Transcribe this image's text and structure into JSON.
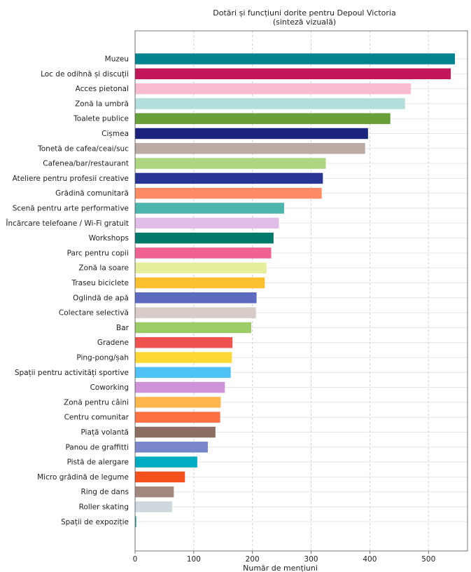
{
  "chart_data": {
    "type": "bar",
    "orientation": "horizontal",
    "title": "Dotări și funcțiuni dorite pentru Depoul Victoria",
    "subtitle": "(sinteză vizuală)",
    "xlabel": "Număr de mențiuni",
    "ylabel": "",
    "xlim": [
      0,
      565
    ],
    "xticks": [
      0,
      100,
      200,
      300,
      400,
      500
    ],
    "grid": "x-dashed",
    "legend": "none",
    "categories": [
      "Muzeu",
      "Loc de odihnă și discuții",
      "Acces pietonal",
      "Zonă la umbră",
      "Toalete publice",
      "Cișmea",
      "Tonetă de cafea/ceai/suc",
      "Cafenea/bar/restaurant",
      "Ateliere pentru profesii creative",
      "Grădină comunitară",
      "Scenă pentru arte performative",
      "Încărcare telefoane / Wi-Fi gratuit",
      "Workshops",
      "Parc pentru copii",
      "Zonă la soare",
      "Traseu biciclete",
      "Oglindă de apă",
      "Colectare selectivă",
      "Bar",
      "Gradene",
      "Ping-pong/șah",
      "Spații pentru activități sportive",
      "Coworking",
      "Zonă pentru câini",
      "Centru comunitar",
      "Piață volantă",
      "Panou de graffitti",
      "Pistă de alergare",
      "Micro grădină de legume",
      "Ring de dans",
      "Roller skating",
      "Spații de expoziție"
    ],
    "values": [
      545,
      538,
      470,
      460,
      435,
      397,
      392,
      325,
      320,
      318,
      254,
      245,
      236,
      232,
      224,
      221,
      207,
      206,
      198,
      166,
      165,
      163,
      153,
      146,
      145,
      137,
      124,
      106,
      85,
      66,
      63,
      2
    ],
    "colors": [
      "#00838f",
      "#c2185b",
      "#f8bbd0",
      "#b2dfdb",
      "#689f38",
      "#1a237e",
      "#bcaaa4",
      "#aed581",
      "#283593",
      "#ff8a65",
      "#4db6ac",
      "#e1bee7",
      "#00796b",
      "#f06292",
      "#e6ee9c",
      "#fbc02d",
      "#5c6bc0",
      "#d7ccc8",
      "#9ccc65",
      "#ef5350",
      "#fdd835",
      "#4fc3f7",
      "#ce93d8",
      "#ffb74d",
      "#ff7043",
      "#8d6e63",
      "#7986cb",
      "#00acc1",
      "#f4511e",
      "#a1887f",
      "#cfd8dc",
      "#26a69a"
    ]
  }
}
